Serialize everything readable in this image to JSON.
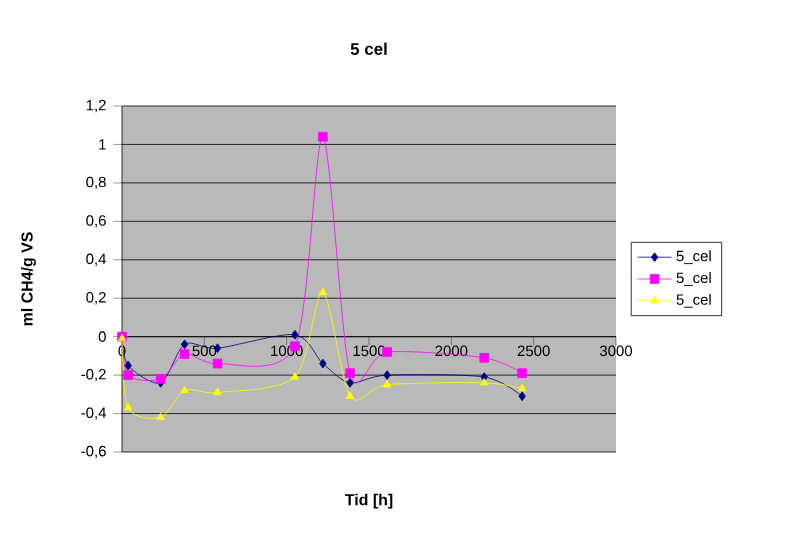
{
  "chart_data": {
    "type": "line",
    "title": "5 cel",
    "xlabel": "Tid [h]",
    "ylabel": "ml CH4/g VS",
    "x": [
      0,
      37,
      235,
      380,
      580,
      1050,
      1220,
      1385,
      1610,
      2200,
      2430
    ],
    "series": [
      {
        "name": "5_cel",
        "color": "#000080",
        "marker": "diamond",
        "values": [
          0,
          -0.15,
          -0.24,
          -0.04,
          -0.06,
          0.01,
          -0.14,
          -0.24,
          -0.2,
          -0.21,
          -0.31
        ]
      },
      {
        "name": "5_cel",
        "color": "#ff00ff",
        "marker": "square",
        "values": [
          0,
          -0.2,
          -0.22,
          -0.09,
          -0.14,
          -0.05,
          1.04,
          -0.19,
          -0.08,
          -0.11,
          -0.19
        ]
      },
      {
        "name": "5_cel",
        "color": "#ffff00",
        "marker": "triangle",
        "values": [
          -0.01,
          -0.37,
          -0.42,
          -0.28,
          -0.29,
          -0.21,
          0.23,
          -0.31,
          -0.25,
          -0.24,
          -0.27
        ]
      }
    ],
    "xlim": [
      0,
      3000
    ],
    "xticks": [
      0,
      500,
      1000,
      1500,
      2000,
      2500,
      3000
    ],
    "ylim": [
      -0.6,
      1.2
    ],
    "yticks": [
      {
        "value": -0.6,
        "label": "-0,6"
      },
      {
        "value": -0.4,
        "label": "-0,4"
      },
      {
        "value": -0.2,
        "label": "-0,2"
      },
      {
        "value": 0,
        "label": "0"
      },
      {
        "value": 0.2,
        "label": "0,2"
      },
      {
        "value": 0.4,
        "label": "0,4"
      },
      {
        "value": 0.6,
        "label": "0,6"
      },
      {
        "value": 0.8,
        "label": "0,8"
      },
      {
        "value": 1,
        "label": "1"
      },
      {
        "value": 1.2,
        "label": "1,2"
      }
    ],
    "grid": "y",
    "legend": "right",
    "line_style": "solid"
  }
}
